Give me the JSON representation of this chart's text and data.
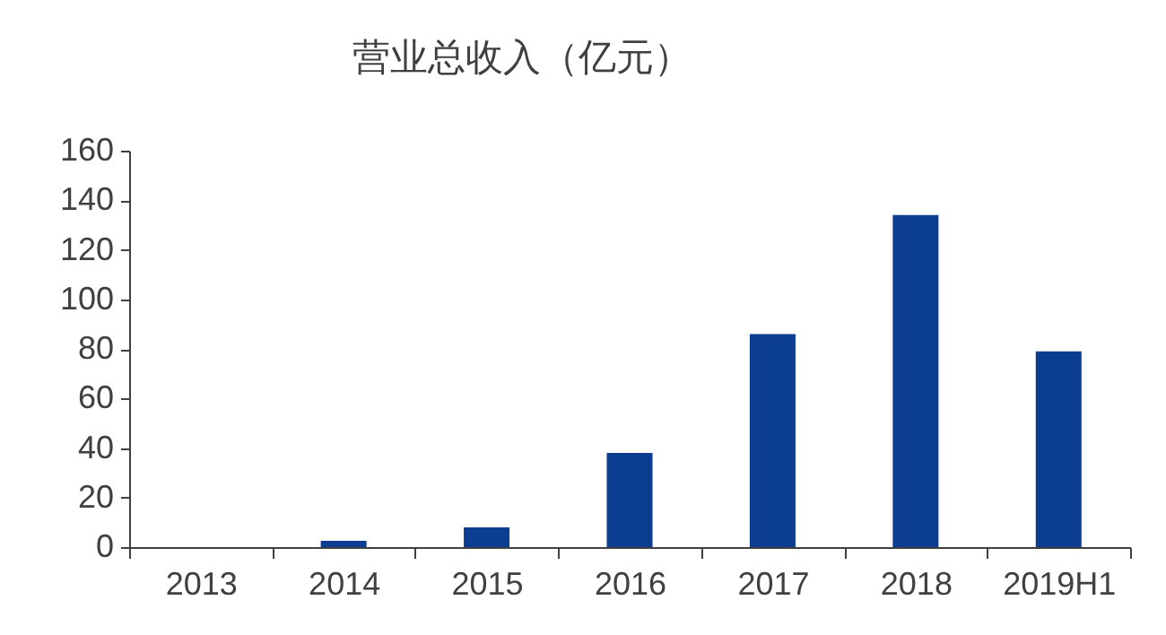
{
  "chart_data": {
    "type": "bar",
    "title": "营业总收入（亿元）",
    "categories": [
      "2013",
      "2014",
      "2015",
      "2016",
      "2017",
      "2018",
      "2019H1"
    ],
    "values": [
      0,
      2.5,
      8,
      38,
      86,
      134,
      79
    ],
    "color": "#0b3d91",
    "ylim": [
      0,
      160
    ],
    "yticks": [
      0,
      20,
      40,
      60,
      80,
      100,
      120,
      140,
      160
    ],
    "grid": false,
    "legend": false
  }
}
